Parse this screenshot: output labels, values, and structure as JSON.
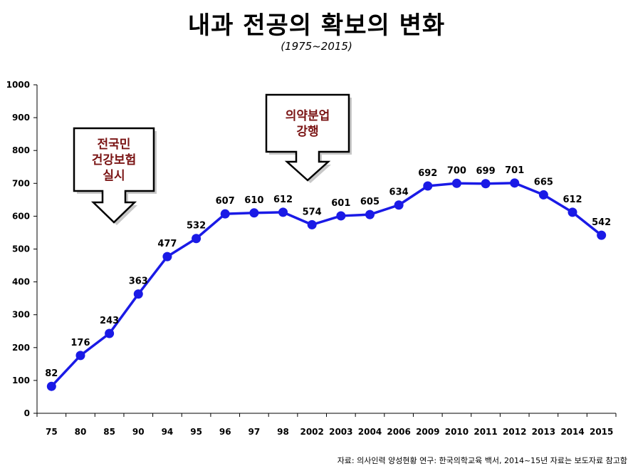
{
  "title": "내과 전공의 확보의 변화",
  "subtitle": "(1975~2015)",
  "source": "자료: 의사인력 양성현황 연구: 한국의학교육 백서, 2014~15년 자료는 보도자료 참고함",
  "callouts": [
    {
      "lines": [
        "전국민",
        "건강보험",
        "실시"
      ],
      "category": "85"
    },
    {
      "lines": [
        "의약분업",
        "강행"
      ],
      "category": "98"
    }
  ],
  "colors": {
    "line": "#1a1ae6",
    "marker": "#1a1ae6",
    "callout_text": "#7a1414"
  },
  "chart_data": {
    "type": "line",
    "categories": [
      "75",
      "80",
      "85",
      "90",
      "94",
      "95",
      "96",
      "97",
      "98",
      "2002",
      "2003",
      "2004",
      "2006",
      "2009",
      "2010",
      "2011",
      "2012",
      "2013",
      "2014",
      "2015"
    ],
    "values": [
      82,
      176,
      243,
      363,
      477,
      532,
      607,
      610,
      612,
      574,
      601,
      605,
      634,
      692,
      700,
      699,
      701,
      665,
      612,
      542
    ],
    "ylim": [
      0,
      1000
    ],
    "yticks": [
      "0",
      "100",
      "200",
      "300",
      "400",
      "500",
      "600",
      "700",
      "800",
      "900",
      "1000"
    ],
    "grid": false,
    "legend": "none",
    "xlabel": "",
    "ylabel": ""
  }
}
